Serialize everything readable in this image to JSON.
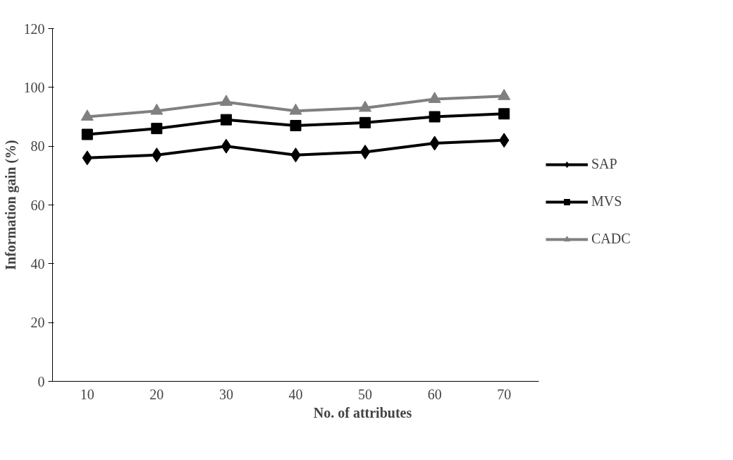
{
  "chart_data": {
    "type": "line",
    "xlabel": "No. of attributes",
    "ylabel": "Information gain (%)",
    "categories": [
      "10",
      "20",
      "30",
      "40",
      "50",
      "60",
      "70"
    ],
    "series": [
      {
        "name": "SAP",
        "color": "#000000",
        "marker": "diamond",
        "values": [
          76,
          77,
          80,
          77,
          78,
          81,
          82
        ]
      },
      {
        "name": "MVS",
        "color": "#000000",
        "marker": "square",
        "values": [
          84,
          86,
          89,
          87,
          88,
          90,
          91
        ]
      },
      {
        "name": "CADC",
        "color": "#808080",
        "marker": "triangle",
        "values": [
          90,
          92,
          95,
          92,
          93,
          96,
          97
        ]
      }
    ],
    "ylim": [
      0,
      120
    ],
    "yticks": [
      0,
      20,
      40,
      60,
      80,
      100,
      120
    ],
    "grid": false,
    "legend": "right",
    "line_style": "solid"
  }
}
